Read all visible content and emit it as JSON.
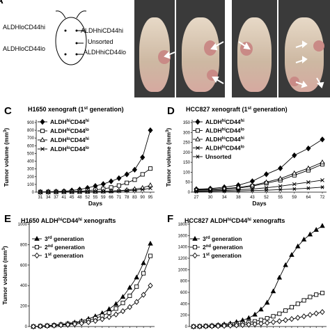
{
  "panel_a": {
    "letter_partial": "A",
    "labels": {
      "left_top": "ALDHloCD44hi",
      "left_bottom": "ALDHloCD44lo",
      "right_top": "ALDHhiCD44hi",
      "right_mid": "Unsorted",
      "right_bottom": "ALDHhiCD44lo"
    }
  },
  "panel_letters": {
    "c": "C",
    "d": "D",
    "e": "E",
    "f": "F"
  },
  "icons": {
    "arrow": "white-arrow-icon",
    "mouse": "mouse-outline-icon"
  },
  "chart_data": [
    {
      "id": "C",
      "type": "line",
      "title": "H1650 xenograft (1st generation)",
      "xlabel": "Days",
      "ylabel": "Tumor volume (mm3)",
      "categories": [
        "31",
        "34",
        "37",
        "41",
        "45",
        "48",
        "52",
        "55",
        "59",
        "66",
        "71",
        "78",
        "83",
        "90",
        "95"
      ],
      "ylim": [
        0,
        900
      ],
      "yticks": [
        0,
        100,
        200,
        300,
        400,
        500,
        600,
        700,
        800,
        900
      ],
      "series": [
        {
          "name": "ALDHhiCD44hi",
          "marker": "diamond-filled",
          "values": [
            3,
            5,
            8,
            12,
            22,
            35,
            55,
            80,
            105,
            140,
            180,
            230,
            290,
            450,
            800
          ]
        },
        {
          "name": "ALDHhiCD44lo",
          "marker": "square-open",
          "values": [
            2,
            3,
            4,
            5,
            8,
            12,
            20,
            30,
            42,
            60,
            85,
            120,
            160,
            230,
            305
          ]
        },
        {
          "name": "ALDHloCD44hi",
          "marker": "triangle-open",
          "values": [
            1,
            2,
            2,
            3,
            4,
            5,
            6,
            8,
            10,
            14,
            20,
            28,
            40,
            55,
            90
          ]
        },
        {
          "name": "ALDHloCD44lo",
          "marker": "x",
          "values": [
            1,
            1,
            2,
            2,
            3,
            4,
            5,
            6,
            8,
            10,
            14,
            20,
            26,
            34,
            50
          ]
        }
      ]
    },
    {
      "id": "D",
      "type": "line",
      "title": "HCC827 xenograft (1st generation)",
      "xlabel": "Days",
      "ylabel": "Tumor volume (mm3)",
      "categories": [
        "27",
        "30",
        "34",
        "38",
        "43",
        "52",
        "55",
        "59",
        "64",
        "72"
      ],
      "ylim": [
        0,
        350
      ],
      "yticks": [
        0,
        50,
        100,
        150,
        200,
        250,
        300,
        350
      ],
      "series": [
        {
          "name": "ALDHhiCD44hi",
          "marker": "diamond-filled",
          "values": [
            15,
            18,
            25,
            35,
            55,
            90,
            120,
            185,
            220,
            265
          ]
        },
        {
          "name": "ALDHhiCD44lo",
          "marker": "square-open",
          "values": [
            10,
            12,
            15,
            20,
            30,
            45,
            60,
            85,
            110,
            140
          ]
        },
        {
          "name": "ALDHloCD44hi",
          "marker": "triangle-open",
          "values": [
            12,
            14,
            18,
            24,
            34,
            50,
            68,
            95,
            120,
            150
          ]
        },
        {
          "name": "ALDHloCD44lo",
          "marker": "x",
          "values": [
            6,
            7,
            9,
            12,
            16,
            22,
            30,
            40,
            50,
            60
          ]
        },
        {
          "name": "Unsorted",
          "marker": "asterisk",
          "values": [
            3,
            4,
            5,
            6,
            8,
            10,
            13,
            16,
            20,
            25
          ]
        }
      ]
    },
    {
      "id": "E",
      "type": "line",
      "title": "H1650 ALDHhiCD44hi xenografts",
      "xlabel": "",
      "ylabel": "Tumor volume (mm3)",
      "ylim": [
        0,
        1000
      ],
      "yticks": [
        0,
        200,
        400,
        600,
        800,
        1000
      ],
      "x": [
        0,
        1,
        2,
        3,
        4,
        5,
        6,
        7,
        8,
        9,
        10,
        11,
        12,
        13,
        14,
        15,
        16,
        17
      ],
      "series": [
        {
          "name": "3rd generation",
          "marker": "triangle-filled",
          "values": [
            0,
            5,
            10,
            15,
            22,
            30,
            40,
            55,
            75,
            100,
            130,
            170,
            220,
            290,
            380,
            480,
            620,
            810
          ]
        },
        {
          "name": "2nd generation",
          "marker": "square-open",
          "values": [
            0,
            4,
            8,
            12,
            18,
            25,
            33,
            45,
            60,
            80,
            105,
            135,
            175,
            230,
            300,
            390,
            520,
            690
          ]
        },
        {
          "name": "1st generation",
          "marker": "diamond-open",
          "values": [
            0,
            3,
            6,
            9,
            13,
            18,
            24,
            32,
            42,
            55,
            72,
            92,
            118,
            150,
            190,
            240,
            310,
            400
          ]
        }
      ]
    },
    {
      "id": "F",
      "type": "line",
      "title": "HCC827 ALDHhiCD44hi xenografts",
      "xlabel": "",
      "ylabel": "",
      "ylim": [
        0,
        1800
      ],
      "yticks": [
        0,
        200,
        400,
        600,
        800,
        1000,
        1200,
        1400,
        1600,
        1800
      ],
      "x": [
        0,
        1,
        2,
        3,
        4,
        5,
        6,
        7,
        8,
        9,
        10,
        11,
        12,
        13,
        14,
        15,
        16,
        17,
        18,
        19,
        20,
        21
      ],
      "series": [
        {
          "name": "3rd generation",
          "marker": "triangle-filled",
          "values": [
            0,
            5,
            10,
            18,
            28,
            40,
            55,
            80,
            110,
            150,
            210,
            300,
            420,
            620,
            860,
            1080,
            1260,
            1410,
            1530,
            1620,
            1700,
            1770
          ]
        },
        {
          "name": "2nd generation",
          "marker": "square-open",
          "values": [
            0,
            4,
            8,
            12,
            18,
            25,
            33,
            43,
            55,
            70,
            90,
            115,
            145,
            180,
            225,
            280,
            340,
            400,
            460,
            520,
            560,
            590
          ]
        },
        {
          "name": "1st generation",
          "marker": "diamond-open",
          "values": [
            0,
            2,
            4,
            6,
            9,
            12,
            16,
            21,
            27,
            34,
            42,
            52,
            64,
            78,
            94,
            112,
            132,
            154,
            178,
            205,
            230,
            255
          ]
        }
      ]
    }
  ]
}
